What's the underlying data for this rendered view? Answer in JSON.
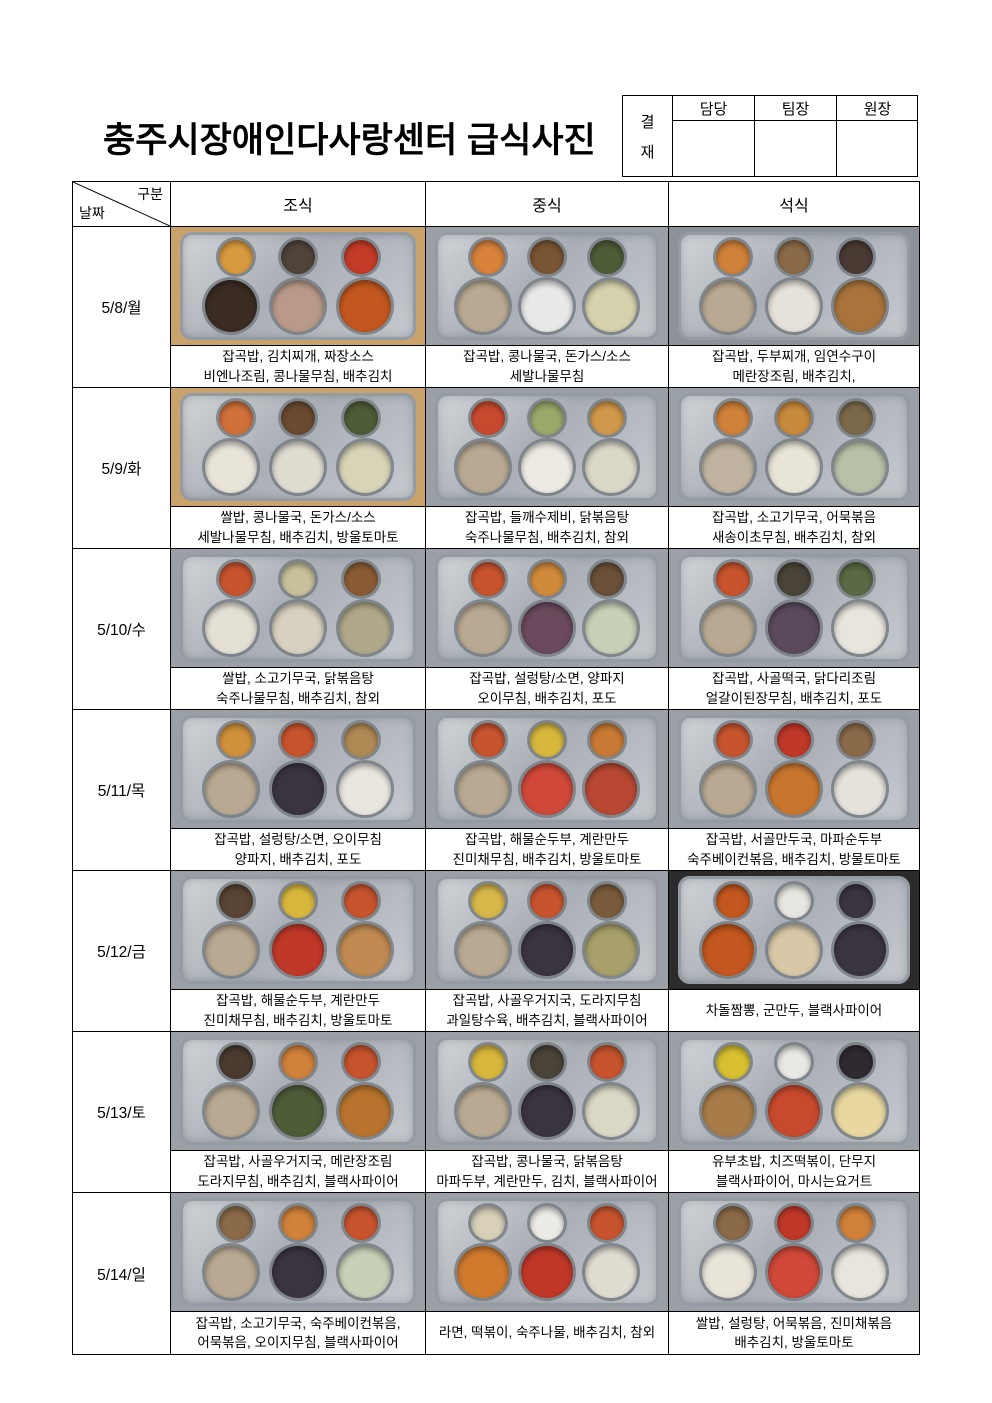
{
  "title": "충주시장애인다사랑센터 급식사진",
  "approval": {
    "label_chars": [
      "결",
      "재"
    ],
    "columns": [
      "담당",
      "팀장",
      "원장"
    ]
  },
  "table": {
    "corner": {
      "top_right": "구분",
      "bottom_left": "날짜"
    },
    "meal_headers": [
      "조식",
      "중식",
      "석식"
    ],
    "rows": [
      {
        "date": "5/8/월",
        "meals": [
          {
            "lines": [
              "잡곡밥, 김치찌개, 짜장소스",
              "비엔나조림, 콩나물무침, 배추김치"
            ],
            "photo": {
              "table": "#c9a36b",
              "blobs": [
                "#d89a3f",
                "#4f443a",
                "#c43c28",
                "#3a2c22",
                "#b99a8a",
                "#c2571f"
              ]
            }
          },
          {
            "lines": [
              "잡곡밥, 콩나물국, 돈가스/소스",
              "세발나물무침"
            ],
            "photo": {
              "table": "#9aa0a6",
              "blobs": [
                "#d8823c",
                "#7a5534",
                "#4e5c38",
                "#b9a992",
                "#e8e8e8",
                "#d6d2ad"
              ]
            }
          },
          {
            "lines": [
              "잡곡밥, 두부찌개, 임연수구이",
              "메란장조림, 배추김치,"
            ],
            "photo": {
              "table": "#8d9298",
              "blobs": [
                "#d0813a",
                "#8a6a48",
                "#4a3a34",
                "#b9a992",
                "#e6e2da",
                "#a8743c"
              ]
            }
          }
        ]
      },
      {
        "date": "5/9/화",
        "meals": [
          {
            "lines": [
              "쌀밥, 콩나물국, 돈가스/소스",
              "세발나물무침, 배추김치, 방울토마토"
            ],
            "photo": {
              "table": "#c9a36b",
              "blobs": [
                "#d0703a",
                "#6a4a30",
                "#4e5c38",
                "#e8e4da",
                "#e0dcd2",
                "#d8d4b8"
              ]
            }
          },
          {
            "lines": [
              "잡곡밥, 들깨수제비, 닭볶음탕",
              "숙주나물무침, 배추김치, 참외"
            ],
            "photo": {
              "table": "#9aa0a6",
              "blobs": [
                "#c84a2e",
                "#9aa86a",
                "#d0984a",
                "#b9a992",
                "#eceae2",
                "#dcd8c8"
              ]
            }
          },
          {
            "lines": [
              "잡곡밥, 소고기무국, 어묵볶음",
              "새송이초무침, 배추김치, 참외"
            ],
            "photo": {
              "table": "#9aa0a6",
              "blobs": [
                "#d0813a",
                "#c88a3c",
                "#7a6a4a",
                "#c0b4a0",
                "#e8e4d8",
                "#b8c0a8"
              ]
            }
          }
        ]
      },
      {
        "date": "5/10/수",
        "meals": [
          {
            "lines": [
              "쌀밥, 소고기무국, 닭볶음탕",
              "숙주나물무침, 배추김치, 참외"
            ],
            "photo": {
              "table": "#9aa0a6",
              "blobs": [
                "#c8542e",
                "#c8c09a",
                "#8a5c34",
                "#e4e0d6",
                "#d8d0c0",
                "#b0a88a"
              ]
            }
          },
          {
            "lines": [
              "잡곡밥, 설렁탕/소면, 양파지",
              "오이무침, 배추김치, 포도"
            ],
            "photo": {
              "table": "#9aa0a6",
              "blobs": [
                "#c8542e",
                "#d08a3c",
                "#6a5038",
                "#b9a992",
                "#6a4a5c",
                "#c8d0b8"
              ]
            }
          },
          {
            "lines": [
              "잡곡밥, 사골떡국, 닭다리조림",
              "얼갈이된장무침, 배추김치, 포도"
            ],
            "photo": {
              "table": "#9aa0a6",
              "blobs": [
                "#c8542e",
                "#4a4438",
                "#5a6a44",
                "#b9a992",
                "#5a4a5c",
                "#e8e6dc"
              ]
            }
          }
        ]
      },
      {
        "date": "5/11/목",
        "meals": [
          {
            "lines": [
              "잡곡밥, 설렁탕/소면, 오이무침",
              "양파지, 배추김치, 포도"
            ],
            "photo": {
              "table": "#9aa0a6",
              "blobs": [
                "#d0913c",
                "#c8542e",
                "#b08a54",
                "#b9a992",
                "#3a3440",
                "#e8e6de"
              ]
            }
          },
          {
            "lines": [
              "잡곡밥, 해물순두부, 계란만두",
              "진미채무침, 배추김치, 방울토마토"
            ],
            "photo": {
              "table": "#9aa0a6",
              "blobs": [
                "#c8542e",
                "#d8b83c",
                "#c87a34",
                "#b9a992",
                "#d04838",
                "#b84832"
              ]
            }
          },
          {
            "lines": [
              "잡곡밥, 서골만두국, 마파순두부",
              "숙주베이컨볶음, 배추김치, 방물토마토"
            ],
            "photo": {
              "table": "#9aa0a6",
              "blobs": [
                "#c8542e",
                "#c03828",
                "#8a6a48",
                "#b9a992",
                "#c8762e",
                "#e4e2da"
              ]
            }
          }
        ]
      },
      {
        "date": "5/12/금",
        "meals": [
          {
            "lines": [
              "잡곡밥, 해물순두부, 계란만두",
              "진미채무침, 배추김치, 방울토마토"
            ],
            "photo": {
              "table": "#9aa0a6",
              "blobs": [
                "#5a4434",
                "#d8b83c",
                "#c8542e",
                "#b9a992",
                "#c03828",
                "#c08a52"
              ]
            }
          },
          {
            "lines": [
              "잡곡밥, 사골우거지국, 도라지무침",
              "과일탕수육, 배추김치, 블랙사파이어"
            ],
            "photo": {
              "table": "#9aa0a6",
              "blobs": [
                "#d8b84a",
                "#c8542e",
                "#7a5c3c",
                "#b9a992",
                "#3a3440",
                "#a8a06a"
              ]
            }
          },
          {
            "lines": [
              "차돌짬뽕, 군만두, 블랙사파이어"
            ],
            "photo": {
              "table": "#2b2b2b",
              "blobs": [
                "#c2571f",
                "#e8e6e0",
                "#3a3440",
                "#c2571f",
                "#d8c8a8",
                "#3a3440"
              ]
            }
          }
        ]
      },
      {
        "date": "5/13/토",
        "meals": [
          {
            "lines": [
              "잡곡밥, 사골우거지국, 메란장조림",
              "도라지무침, 배추김치, 블랙사파이어"
            ],
            "photo": {
              "table": "#9aa0a6",
              "blobs": [
                "#4a3a30",
                "#d0813a",
                "#c8542e",
                "#b9a992",
                "#4e5c38",
                "#b8742e"
              ]
            }
          },
          {
            "lines": [
              "잡곡밥, 콩나물국, 닭볶음탕",
              "마파두부, 계란만두, 김치, 블랙사파이어"
            ],
            "photo": {
              "table": "#9aa0a6",
              "blobs": [
                "#d8b83c",
                "#4a4438",
                "#c8542e",
                "#b9a992",
                "#3a3440",
                "#dcd8c8"
              ]
            }
          },
          {
            "lines": [
              "유부초밥, 치즈떡볶이, 단무지",
              "블랙사파이어, 마시는요거트"
            ],
            "photo": {
              "table": "#9aa0a6",
              "blobs": [
                "#d8c030",
                "#e8e8e4",
                "#2e2a30",
                "#a87c48",
                "#c84a2e",
                "#e8d8a0"
              ]
            }
          }
        ]
      },
      {
        "date": "5/14/일",
        "meals": [
          {
            "lines": [
              "잡곡밥, 소고기무국, 숙주베이컨볶음,",
              "어묵볶음, 오이지무침, 블랙사파이어"
            ],
            "photo": {
              "table": "#9aa0a6",
              "blobs": [
                "#8a6a48",
                "#d0813a",
                "#c8542e",
                "#b9a992",
                "#3a3440",
                "#c8d0b8"
              ]
            }
          },
          {
            "lines": [
              "라면, 떡볶이, 숙주나물, 배추김치, 참외"
            ],
            "photo": {
              "table": "#9aa0a6",
              "blobs": [
                "#d8d0b8",
                "#ecebe6",
                "#c8542e",
                "#d07a2e",
                "#c03828",
                "#e0dcd2"
              ]
            }
          },
          {
            "lines": [
              "쌀밥, 설렁탕, 어묵볶음, 진미채볶음",
              "배추김치, 방울토마토"
            ],
            "photo": {
              "table": "#9aa0a6",
              "blobs": [
                "#8a6a48",
                "#c03828",
                "#d0813a",
                "#e8e4da",
                "#d04838",
                "#e8e6dc"
              ]
            }
          }
        ]
      }
    ]
  },
  "colors": {
    "border": "#000000",
    "paper": "#ffffff",
    "tray_steel": "#aab0b6"
  }
}
